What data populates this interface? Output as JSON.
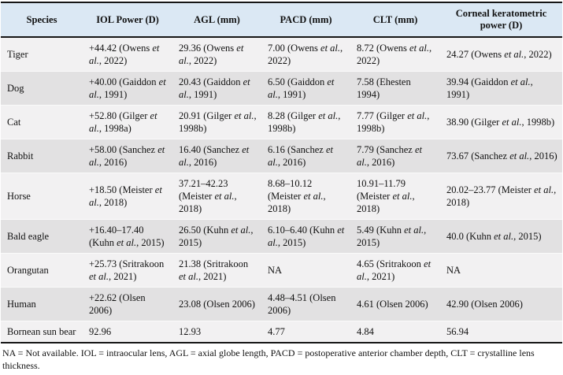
{
  "table": {
    "columns": [
      "Species",
      "IOL Power (D)",
      "AGL (mm)",
      "PACD (mm)",
      "CLT (mm)",
      "Corneal keratometric power (D)"
    ],
    "rows": [
      {
        "species": "Tiger",
        "cells": [
          "+44.42 (Owens et al., 2022)",
          "29.36 (Owens et al., 2022)",
          "7.00 (Owens et al., 2022)",
          "8.72 (Owens et al., 2022)",
          "24.27 (Owens et al., 2022)"
        ]
      },
      {
        "species": "Dog",
        "cells": [
          "+40.00 (Gaiddon et al., 1991)",
          "20.43 (Gaiddon et al., 1991)",
          "6.50 (Gaiddon et al., 1991)",
          "7.58 (Ehesten 1994)",
          "39.94 (Gaiddon et al., 1991)"
        ]
      },
      {
        "species": "Cat",
        "cells": [
          "+52.80 (Gilger et al., 1998a)",
          "20.91 (Gilger et al., 1998b)",
          "8.28 (Gilger et al., 1998b)",
          "7.77 (Gilger et al., 1998b)",
          "38.90 (Gilger et al., 1998b)"
        ]
      },
      {
        "species": "Rabbit",
        "cells": [
          "+58.00 (Sanchez et al., 2016)",
          "16.40 (Sanchez et al., 2016)",
          "6.16 (Sanchez et al., 2016)",
          "7.79 (Sanchez et al., 2016)",
          "73.67 (Sanchez et al., 2016)"
        ]
      },
      {
        "species": "Horse",
        "cells": [
          "+18.50 (Meister et al., 2018)",
          "37.21–42.23 (Meister et al., 2018)",
          "8.68–10.12 (Meister et al., 2018)",
          "10.91–11.79 (Meister et al., 2018)",
          "20.02–23.77 (Meister et al., 2018)"
        ]
      },
      {
        "species": "Bald eagle",
        "cells": [
          "+16.40–17.40 (Kuhn et al., 2015)",
          "26.50 (Kuhn et al., 2015)",
          "6.10–6.40 (Kuhn et al., 2015)",
          "5.49 (Kuhn et al., 2015)",
          "40.0 (Kuhn et al., 2015)"
        ]
      },
      {
        "species": "Orangutan",
        "cells": [
          "+25.73 (Sritrakoon et al., 2021)",
          "21.38 (Sritrakoon et al., 2021)",
          "NA",
          "4.65 (Sritrakoon et al., 2021)",
          "NA"
        ]
      },
      {
        "species": "Human",
        "cells": [
          "+22.62 (Olsen 2006)",
          "23.08 (Olsen 2006)",
          "4.48–4.51 (Olsen 2006)",
          "4.61 (Olsen 2006)",
          "42.90 (Olsen 2006)"
        ]
      },
      {
        "species": "Bornean sun bear",
        "cells": [
          "92.96",
          "12.93",
          "4.77",
          "4.84",
          "56.94"
        ]
      }
    ]
  },
  "footnote": "NA = Not available. IOL = intraocular lens, AGL = axial globe length, PACD = postoperative anterior chamber depth, CLT = crystalline lens thickness.",
  "colors": {
    "header_bg": "#dbe8f4",
    "row_light": "#f2f1f2",
    "row_dark": "#e2e1e2",
    "rule": "#161616"
  }
}
